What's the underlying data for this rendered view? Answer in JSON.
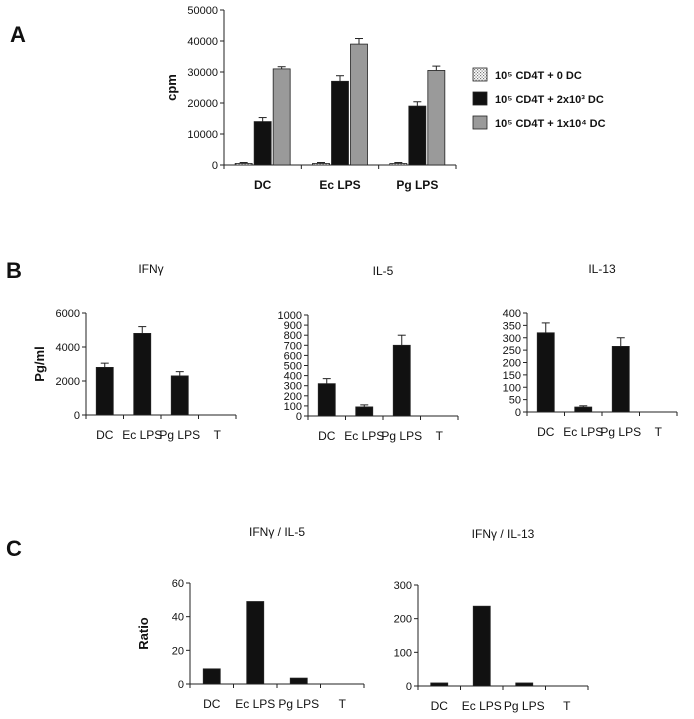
{
  "panel_labels": {
    "a": "A",
    "b": "B",
    "c": "C"
  },
  "colors": {
    "black": "#111111",
    "gray": "#9a9a9a",
    "dotted": "#e0e0e0",
    "axis": "#222222"
  },
  "chart_data": [
    {
      "id": "A",
      "type": "bar",
      "title": "",
      "xlabel": "",
      "ylabel": "cpm",
      "ylim": [
        0,
        50000
      ],
      "yticks": [
        0,
        10000,
        20000,
        30000,
        40000,
        50000
      ],
      "tick_labels": [
        "0",
        "10000",
        "20000",
        "30000",
        "40000",
        "50000"
      ],
      "categories": [
        "DC",
        "Ec LPS",
        "Pg LPS"
      ],
      "legend_position": "right",
      "series": [
        {
          "name": "10⁵ CD4T + 0 DC",
          "fill": "dotted",
          "values": [
            500,
            500,
            500
          ],
          "errors": [
            300,
            300,
            300
          ]
        },
        {
          "name": "10⁵ CD4T + 2x10³ DC",
          "fill": "black",
          "values": [
            14000,
            27000,
            19000
          ],
          "errors": [
            1300,
            1800,
            1400
          ]
        },
        {
          "name": "10⁵ CD4T + 1x10⁴ DC",
          "fill": "gray",
          "values": [
            31000,
            39000,
            30500
          ],
          "errors": [
            700,
            1800,
            1400
          ]
        }
      ]
    },
    {
      "id": "B1",
      "type": "bar",
      "title": "IFNγ",
      "xlabel": "",
      "ylabel": "Pg/ml",
      "ylim": [
        0,
        6000
      ],
      "yticks": [
        0,
        2000,
        4000,
        6000
      ],
      "tick_labels": [
        "0",
        "2000",
        "4000",
        "6000"
      ],
      "categories": [
        "DC",
        "Ec LPS",
        "Pg LPS",
        "T"
      ],
      "series": [
        {
          "values": [
            2800,
            4800,
            2300,
            0
          ],
          "errors": [
            250,
            400,
            250,
            0
          ]
        }
      ]
    },
    {
      "id": "B2",
      "type": "bar",
      "title": "IL-5",
      "xlabel": "",
      "ylabel": "",
      "ylim": [
        0,
        1000
      ],
      "yticks": [
        0,
        100,
        200,
        300,
        400,
        500,
        600,
        700,
        800,
        900,
        1000
      ],
      "tick_labels": [
        "0",
        "100",
        "200",
        "300",
        "400",
        "500",
        "600",
        "700",
        "800",
        "900",
        "1000"
      ],
      "categories": [
        "DC",
        "Ec LPS",
        "Pg LPS",
        "T"
      ],
      "series": [
        {
          "values": [
            320,
            90,
            700,
            0
          ],
          "errors": [
            50,
            20,
            100,
            0
          ]
        }
      ]
    },
    {
      "id": "B3",
      "type": "bar",
      "title": "IL-13",
      "xlabel": "",
      "ylabel": "",
      "ylim": [
        0,
        400
      ],
      "yticks": [
        0,
        50,
        100,
        150,
        200,
        250,
        300,
        350,
        400
      ],
      "tick_labels": [
        "0",
        "50",
        "100",
        "150",
        "200",
        "250",
        "300",
        "350",
        "400"
      ],
      "categories": [
        "DC",
        "Ec LPS",
        "Pg LPS",
        "T"
      ],
      "series": [
        {
          "values": [
            320,
            20,
            265,
            0
          ],
          "errors": [
            40,
            5,
            35,
            0
          ]
        }
      ]
    },
    {
      "id": "C1",
      "type": "bar",
      "title": "IFNγ / IL-5",
      "xlabel": "",
      "ylabel": "Ratio",
      "ylim": [
        0,
        60
      ],
      "yticks": [
        0,
        20,
        40,
        60
      ],
      "tick_labels": [
        "0",
        "20",
        "40",
        "60"
      ],
      "categories": [
        "DC",
        "Ec LPS",
        "Pg LPS",
        "T"
      ],
      "series": [
        {
          "values": [
            9,
            49,
            3.5,
            0
          ]
        }
      ]
    },
    {
      "id": "C2",
      "type": "bar",
      "title": "IFNγ / IL-13",
      "xlabel": "",
      "ylabel": "",
      "ylim": [
        0,
        300
      ],
      "yticks": [
        0,
        100,
        200,
        300
      ],
      "tick_labels": [
        "0",
        "100",
        "200",
        "300"
      ],
      "categories": [
        "DC",
        "Ec LPS",
        "Pg LPS",
        "T"
      ],
      "series": [
        {
          "values": [
            9,
            237,
            9,
            0
          ]
        }
      ]
    }
  ]
}
